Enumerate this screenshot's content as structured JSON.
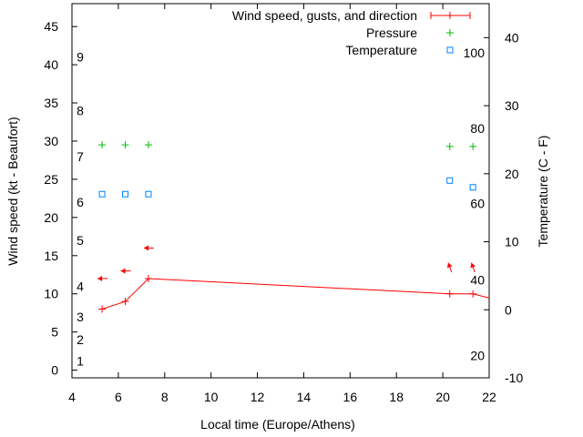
{
  "chart_data": {
    "type": "line",
    "xlabel": "Local time (Europe/Athens)",
    "ylabel": "Wind speed (kt - Beaufort)",
    "y2label": "Temperature (C - F)",
    "xlim": [
      4,
      22
    ],
    "ylim": [
      -1,
      48
    ],
    "y2lim": [
      -10,
      45
    ],
    "xticks": [
      4,
      6,
      8,
      10,
      12,
      14,
      16,
      18,
      20,
      22
    ],
    "yticks": [
      0,
      5,
      10,
      15,
      20,
      25,
      30,
      35,
      40,
      45
    ],
    "y2ticks": [
      -10,
      0,
      10,
      20,
      30,
      40
    ],
    "beaufort_labels": [
      {
        "label": "1",
        "kt": 1.2
      },
      {
        "label": "2",
        "kt": 4
      },
      {
        "label": "3",
        "kt": 7
      },
      {
        "label": "4",
        "kt": 11
      },
      {
        "label": "5",
        "kt": 17
      },
      {
        "label": "6",
        "kt": 22
      },
      {
        "label": "7",
        "kt": 28
      },
      {
        "label": "8",
        "kt": 34
      },
      {
        "label": "9",
        "kt": 41
      }
    ],
    "fahrenheit_labels": [
      {
        "label": "20",
        "c": -6.7
      },
      {
        "label": "40",
        "c": 4.4
      },
      {
        "label": "60",
        "c": 15.6
      },
      {
        "label": "80",
        "c": 26.7
      },
      {
        "label": "100",
        "c": 37.8
      }
    ],
    "legend": {
      "position": "top-right",
      "entries": [
        "Wind speed, gusts, and direction",
        "Pressure",
        "Temperature"
      ]
    },
    "series": [
      {
        "name": "Wind speed, gusts, and direction",
        "color": "#ff0000",
        "x": [
          5.3,
          6.3,
          7.3,
          20.3,
          21.3,
          22.6
        ],
        "y": [
          8,
          9,
          12,
          10,
          10,
          9
        ]
      },
      {
        "name": "Wind gust direction",
        "color": "#ff0000",
        "x": [
          5.3,
          6.3,
          7.3,
          20.3,
          21.3
        ],
        "y": [
          12,
          13,
          16,
          13.5,
          13.5
        ],
        "arrow_angle_deg": [
          180,
          180,
          180,
          110,
          110
        ]
      },
      {
        "name": "Pressure",
        "color": "#00c000",
        "x": [
          5.3,
          6.3,
          7.3,
          20.3,
          21.3
        ],
        "y": [
          29.5,
          29.5,
          29.5,
          29.3,
          29.3
        ]
      },
      {
        "name": "Temperature",
        "color": "#0080ff",
        "axis": "y2",
        "x": [
          5.3,
          6.3,
          7.3,
          20.3,
          21.3
        ],
        "y": [
          17,
          17,
          17,
          19,
          18
        ]
      }
    ]
  }
}
